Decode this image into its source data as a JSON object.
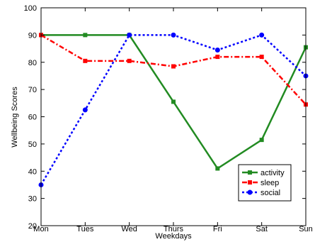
{
  "chart_data": {
    "type": "line",
    "title": "",
    "xlabel": "Weekdays",
    "ylabel": "Wellbeing Scores",
    "categories": [
      "Mon",
      "Tues",
      "Wed",
      "Thurs",
      "Fri",
      "Sat",
      "Sun"
    ],
    "ylim": [
      20,
      100
    ],
    "yticks": [
      20,
      30,
      40,
      50,
      60,
      70,
      80,
      90,
      100
    ],
    "grid": false,
    "legend_position": "bottom-right",
    "series": [
      {
        "name": "activity",
        "values": [
          90,
          90,
          90,
          65.5,
          41,
          51.5,
          85.5
        ],
        "color": "#228B22",
        "line_style": "solid",
        "marker": "square"
      },
      {
        "name": "sleep",
        "values": [
          90,
          80.5,
          80.5,
          78.5,
          82,
          82,
          64.5
        ],
        "color": "#ff0000",
        "line_style": "dashdot",
        "marker": "square"
      },
      {
        "name": "social",
        "values": [
          35,
          62.5,
          90,
          90,
          84.5,
          90,
          75
        ],
        "color": "#0000ff",
        "line_style": "dotted",
        "marker": "circle"
      }
    ]
  }
}
